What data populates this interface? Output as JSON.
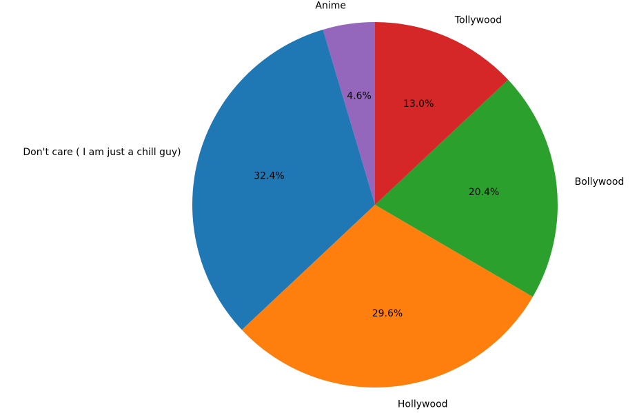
{
  "chart_data": {
    "type": "pie",
    "title": "",
    "start_angle_deg": 90,
    "direction": "counterclockwise",
    "slices": [
      {
        "label": "Anime",
        "value": 4.6,
        "pct_label": "4.6%",
        "color": "#9467bd"
      },
      {
        "label": "Don't care ( I am just a chill guy)",
        "value": 32.4,
        "pct_label": "32.4%",
        "color": "#1f77b4"
      },
      {
        "label": "Hollywood",
        "value": 29.6,
        "pct_label": "29.6%",
        "color": "#ff7f0e"
      },
      {
        "label": "Bollywood",
        "value": 20.4,
        "pct_label": "20.4%",
        "color": "#2ca02c"
      },
      {
        "label": "Tollywood",
        "value": 13.0,
        "pct_label": "13.0%",
        "color": "#d62728"
      }
    ],
    "legend": "none"
  }
}
